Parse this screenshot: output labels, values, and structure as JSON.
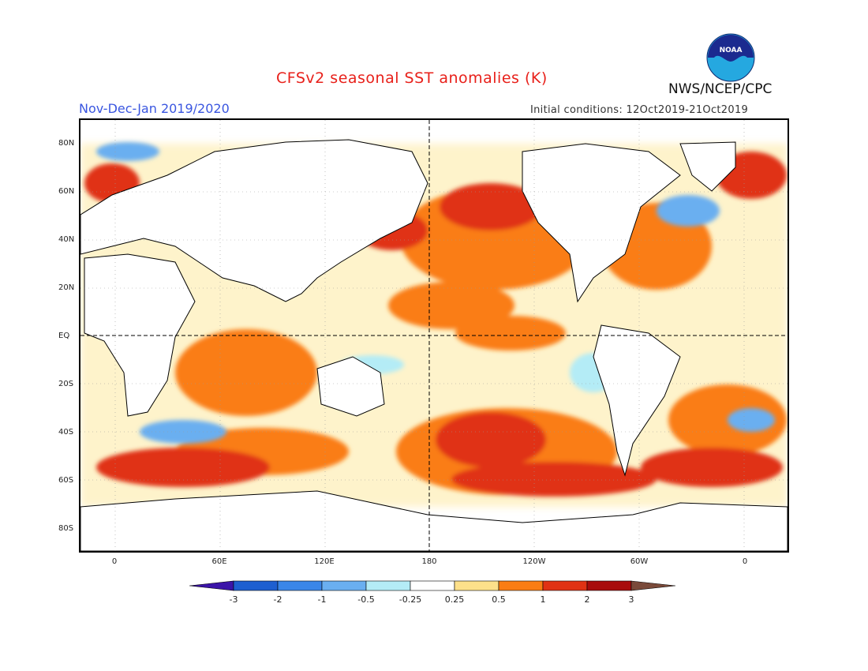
{
  "header": {
    "title": "CFSv2 seasonal SST anomalies (K)",
    "org": "NWS/NCEP/CPC",
    "period": "Nov-Dec-Jan 2019/2020",
    "initial_conditions": "Initial conditions: 12Oct2019-21Oct2019",
    "logo_text": "NOAA"
  },
  "axes": {
    "lat_labels": [
      "80N",
      "60N",
      "40N",
      "20N",
      "EQ",
      "20S",
      "40S",
      "60S",
      "80S"
    ],
    "lon_labels": [
      "0",
      "60E",
      "120E",
      "180",
      "120W",
      "60W",
      "0"
    ]
  },
  "colorbar": {
    "unit": "K",
    "labels": [
      "-3",
      "-2",
      "-1",
      "-0.5",
      "-0.25",
      "0.25",
      "0.5",
      "1",
      "2",
      "3"
    ],
    "colors": [
      "#3b14a8",
      "#1e5fd0",
      "#3a86e8",
      "#6aaff0",
      "#b4ecf6",
      "#ffffff",
      "#fde08a",
      "#fa7d14",
      "#e03214",
      "#a80c0c",
      "#7a4a3a"
    ]
  }
}
